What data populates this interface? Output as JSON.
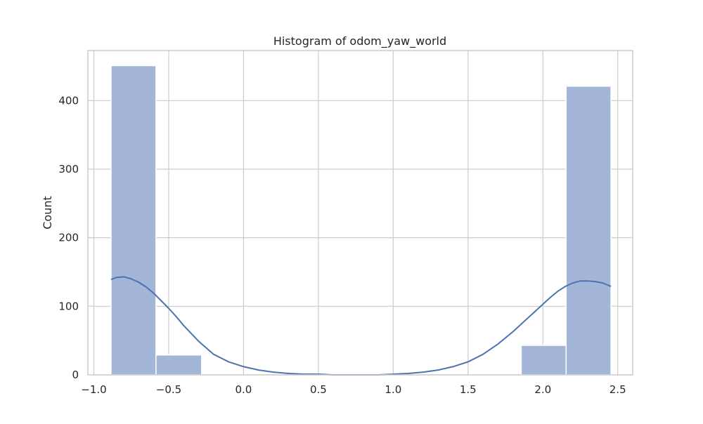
{
  "chart_data": {
    "type": "bar",
    "title": "Histogram of odom_yaw_world",
    "xlabel": "",
    "ylabel": "Count",
    "xlim": [
      -1.04,
      2.6
    ],
    "ylim": [
      0,
      473
    ],
    "x_ticks": [
      -1.0,
      -0.5,
      0.0,
      0.5,
      1.0,
      1.5,
      2.0,
      2.5
    ],
    "x_tick_labels": [
      "−1.0",
      "−0.5",
      "0.0",
      "0.5",
      "1.0",
      "1.5",
      "2.0",
      "2.5"
    ],
    "y_ticks": [
      0,
      100,
      200,
      300,
      400
    ],
    "y_tick_labels": [
      "0",
      "100",
      "200",
      "300",
      "400"
    ],
    "grid": true,
    "legend": "none",
    "bins": [
      {
        "x0": -0.885,
        "x1": -0.585,
        "count": 451
      },
      {
        "x0": -0.585,
        "x1": -0.28,
        "count": 29
      },
      {
        "x0": -0.28,
        "x1": 0.025,
        "count": 0
      },
      {
        "x0": 0.025,
        "x1": 0.33,
        "count": 0
      },
      {
        "x0": 0.33,
        "x1": 0.635,
        "count": 0
      },
      {
        "x0": 0.635,
        "x1": 0.94,
        "count": 0
      },
      {
        "x0": 0.94,
        "x1": 1.245,
        "count": 0
      },
      {
        "x0": 1.245,
        "x1": 1.55,
        "count": 0
      },
      {
        "x0": 1.55,
        "x1": 1.855,
        "count": 0
      },
      {
        "x0": 1.855,
        "x1": 2.155,
        "count": 43
      },
      {
        "x0": 2.155,
        "x1": 2.455,
        "count": 421
      }
    ],
    "kde": {
      "x": [
        -0.885,
        -0.85,
        -0.8,
        -0.75,
        -0.7,
        -0.65,
        -0.6,
        -0.55,
        -0.5,
        -0.45,
        -0.4,
        -0.3,
        -0.2,
        -0.1,
        0.0,
        0.1,
        0.2,
        0.3,
        0.4,
        0.5,
        0.6,
        0.7,
        0.8,
        0.9,
        1.0,
        1.1,
        1.2,
        1.3,
        1.4,
        1.5,
        1.6,
        1.7,
        1.8,
        1.9,
        2.0,
        2.05,
        2.1,
        2.15,
        2.2,
        2.25,
        2.3,
        2.35,
        2.4,
        2.455
      ],
      "y": [
        139,
        142,
        143,
        140,
        135,
        128,
        119,
        108,
        97,
        85,
        72,
        49,
        30,
        19,
        12,
        7,
        4,
        2,
        1,
        1,
        0,
        0,
        0,
        0,
        1,
        2,
        4,
        7,
        12,
        19,
        30,
        45,
        63,
        83,
        103,
        113,
        122,
        129,
        134,
        137,
        137,
        136,
        134,
        129
      ]
    },
    "colors": {
      "bar_fill": "#a3b6d7",
      "bar_edge": "#ffffff",
      "kde_line": "#4c72b0",
      "grid": "#cccccc",
      "frame": "#cccccc",
      "text": "#262626"
    }
  }
}
